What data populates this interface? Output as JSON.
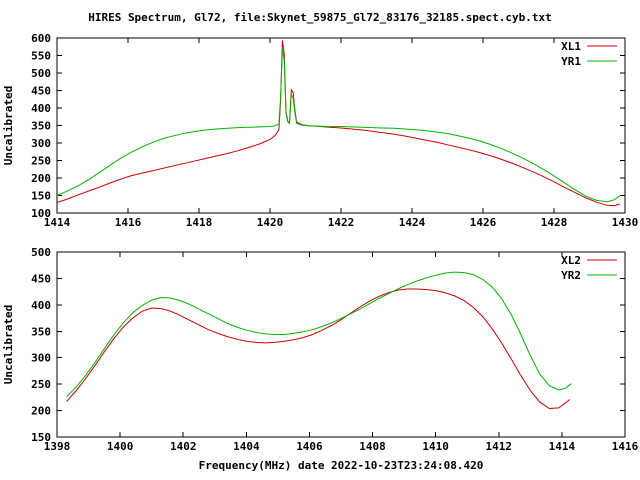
{
  "title": "HIRES Spectrum, Gl72, file:Skynet_59875_Gl72_83176_32185.spect.cyb.txt",
  "xlabel": "Frequency(MHz) date 2022-10-23T23:24:08.420",
  "colors": {
    "red": "#cc0000",
    "green": "#00b400",
    "axis": "#000000",
    "background": "#ffffff"
  },
  "chart_data": [
    {
      "type": "line",
      "panel": "top",
      "ylabel": "Uncalibrated",
      "xlim": [
        1414,
        1430
      ],
      "ylim": [
        100,
        600
      ],
      "xticks": [
        1414,
        1416,
        1418,
        1420,
        1422,
        1424,
        1426,
        1428,
        1430
      ],
      "yticks": [
        100,
        150,
        200,
        250,
        300,
        350,
        400,
        450,
        500,
        550,
        600
      ],
      "grid": false,
      "legend_position": "top-right",
      "series": [
        {
          "name": "XL1",
          "color_key": "red",
          "points": [
            [
              1414.0,
              130
            ],
            [
              1414.3,
              140
            ],
            [
              1414.6,
              152
            ],
            [
              1414.9,
              163
            ],
            [
              1415.2,
              174
            ],
            [
              1415.5,
              186
            ],
            [
              1415.8,
              197
            ],
            [
              1416.1,
              207
            ],
            [
              1416.4,
              214
            ],
            [
              1416.7,
              221
            ],
            [
              1417.0,
              228
            ],
            [
              1417.3,
              235
            ],
            [
              1417.6,
              242
            ],
            [
              1417.9,
              249
            ],
            [
              1418.2,
              256
            ],
            [
              1418.5,
              263
            ],
            [
              1418.8,
              270
            ],
            [
              1419.1,
              278
            ],
            [
              1419.4,
              287
            ],
            [
              1419.7,
              297
            ],
            [
              1420.0,
              310
            ],
            [
              1420.15,
              322
            ],
            [
              1420.25,
              338
            ],
            [
              1420.3,
              420
            ],
            [
              1420.35,
              593
            ],
            [
              1420.4,
              555
            ],
            [
              1420.45,
              390
            ],
            [
              1420.5,
              362
            ],
            [
              1420.55,
              358
            ],
            [
              1420.6,
              452
            ],
            [
              1420.65,
              445
            ],
            [
              1420.7,
              395
            ],
            [
              1420.75,
              360
            ],
            [
              1420.9,
              352
            ],
            [
              1421.1,
              349
            ],
            [
              1421.4,
              347
            ],
            [
              1421.7,
              345
            ],
            [
              1422.0,
              343
            ],
            [
              1422.3,
              340
            ],
            [
              1422.6,
              337
            ],
            [
              1422.9,
              333
            ],
            [
              1423.2,
              329
            ],
            [
              1423.5,
              325
            ],
            [
              1423.8,
              320
            ],
            [
              1424.1,
              314
            ],
            [
              1424.4,
              308
            ],
            [
              1424.7,
              302
            ],
            [
              1425.0,
              295
            ],
            [
              1425.3,
              288
            ],
            [
              1425.6,
              281
            ],
            [
              1425.9,
              273
            ],
            [
              1426.2,
              264
            ],
            [
              1426.5,
              254
            ],
            [
              1426.8,
              243
            ],
            [
              1427.1,
              231
            ],
            [
              1427.4,
              218
            ],
            [
              1427.7,
              204
            ],
            [
              1428.0,
              189
            ],
            [
              1428.3,
              173
            ],
            [
              1428.6,
              158
            ],
            [
              1428.9,
              143
            ],
            [
              1429.2,
              131
            ],
            [
              1429.5,
              122
            ],
            [
              1429.7,
              121
            ],
            [
              1429.85,
              126
            ]
          ]
        },
        {
          "name": "YR1",
          "color_key": "green",
          "points": [
            [
              1414.0,
              150
            ],
            [
              1414.3,
              163
            ],
            [
              1414.6,
              178
            ],
            [
              1414.9,
              196
            ],
            [
              1415.2,
              216
            ],
            [
              1415.5,
              237
            ],
            [
              1415.8,
              257
            ],
            [
              1416.1,
              274
            ],
            [
              1416.4,
              289
            ],
            [
              1416.7,
              302
            ],
            [
              1417.0,
              313
            ],
            [
              1417.3,
              321
            ],
            [
              1417.6,
              328
            ],
            [
              1417.9,
              333
            ],
            [
              1418.2,
              337
            ],
            [
              1418.5,
              340
            ],
            [
              1418.8,
              342
            ],
            [
              1419.1,
              344
            ],
            [
              1419.4,
              345
            ],
            [
              1419.7,
              346
            ],
            [
              1420.0,
              347
            ],
            [
              1420.15,
              349
            ],
            [
              1420.25,
              355
            ],
            [
              1420.3,
              430
            ],
            [
              1420.35,
              570
            ],
            [
              1420.4,
              535
            ],
            [
              1420.45,
              385
            ],
            [
              1420.5,
              360
            ],
            [
              1420.55,
              356
            ],
            [
              1420.6,
              438
            ],
            [
              1420.65,
              430
            ],
            [
              1420.7,
              388
            ],
            [
              1420.75,
              356
            ],
            [
              1420.9,
              351
            ],
            [
              1421.1,
              349
            ],
            [
              1421.4,
              348
            ],
            [
              1421.7,
              347
            ],
            [
              1422.0,
              347
            ],
            [
              1422.3,
              346
            ],
            [
              1422.6,
              345
            ],
            [
              1422.9,
              344
            ],
            [
              1423.2,
              343
            ],
            [
              1423.5,
              342
            ],
            [
              1423.8,
              340
            ],
            [
              1424.1,
              338
            ],
            [
              1424.4,
              335
            ],
            [
              1424.7,
              331
            ],
            [
              1425.0,
              327
            ],
            [
              1425.3,
              321
            ],
            [
              1425.6,
              314
            ],
            [
              1425.9,
              306
            ],
            [
              1426.2,
              296
            ],
            [
              1426.5,
              285
            ],
            [
              1426.8,
              272
            ],
            [
              1427.1,
              258
            ],
            [
              1427.4,
              242
            ],
            [
              1427.7,
              225
            ],
            [
              1428.0,
              206
            ],
            [
              1428.3,
              186
            ],
            [
              1428.6,
              166
            ],
            [
              1428.9,
              148
            ],
            [
              1429.2,
              136
            ],
            [
              1429.5,
              132
            ],
            [
              1429.7,
              138
            ],
            [
              1429.85,
              149
            ]
          ]
        }
      ]
    },
    {
      "type": "line",
      "panel": "bottom",
      "ylabel": "Uncalibrated",
      "xlim": [
        1398,
        1416
      ],
      "ylim": [
        150,
        500
      ],
      "xticks": [
        1398,
        1400,
        1402,
        1404,
        1406,
        1408,
        1410,
        1412,
        1414,
        1416
      ],
      "yticks": [
        150,
        200,
        250,
        300,
        350,
        400,
        450,
        500
      ],
      "grid": false,
      "legend_position": "top-right",
      "series": [
        {
          "name": "XL2",
          "color_key": "red",
          "points": [
            [
              1398.3,
              217
            ],
            [
              1398.6,
              237
            ],
            [
              1398.9,
              260
            ],
            [
              1399.2,
              285
            ],
            [
              1399.5,
              311
            ],
            [
              1399.8,
              336
            ],
            [
              1400.1,
              358
            ],
            [
              1400.4,
              375
            ],
            [
              1400.7,
              388
            ],
            [
              1401.0,
              394
            ],
            [
              1401.3,
              393
            ],
            [
              1401.6,
              388
            ],
            [
              1401.9,
              380
            ],
            [
              1402.2,
              371
            ],
            [
              1402.5,
              362
            ],
            [
              1402.8,
              353
            ],
            [
              1403.1,
              346
            ],
            [
              1403.4,
              340
            ],
            [
              1403.7,
              335
            ],
            [
              1404.0,
              331
            ],
            [
              1404.3,
              329
            ],
            [
              1404.6,
              328
            ],
            [
              1404.9,
              329
            ],
            [
              1405.2,
              331
            ],
            [
              1405.5,
              334
            ],
            [
              1405.8,
              338
            ],
            [
              1406.1,
              344
            ],
            [
              1406.4,
              352
            ],
            [
              1406.7,
              361
            ],
            [
              1407.0,
              372
            ],
            [
              1407.3,
              384
            ],
            [
              1407.6,
              396
            ],
            [
              1407.9,
              407
            ],
            [
              1408.2,
              416
            ],
            [
              1408.5,
              423
            ],
            [
              1408.8,
              428
            ],
            [
              1409.1,
              430
            ],
            [
              1409.4,
              430
            ],
            [
              1409.7,
              429
            ],
            [
              1410.0,
              427
            ],
            [
              1410.3,
              423
            ],
            [
              1410.6,
              417
            ],
            [
              1410.9,
              408
            ],
            [
              1411.2,
              395
            ],
            [
              1411.5,
              377
            ],
            [
              1411.8,
              354
            ],
            [
              1412.1,
              327
            ],
            [
              1412.4,
              297
            ],
            [
              1412.7,
              266
            ],
            [
              1413.0,
              238
            ],
            [
              1413.3,
              216
            ],
            [
              1413.6,
              204
            ],
            [
              1413.9,
              205
            ],
            [
              1414.1,
              214
            ],
            [
              1414.25,
              221
            ]
          ]
        },
        {
          "name": "YR2",
          "color_key": "green",
          "points": [
            [
              1398.3,
              226
            ],
            [
              1398.6,
              244
            ],
            [
              1398.9,
              266
            ],
            [
              1399.2,
              291
            ],
            [
              1399.5,
              317
            ],
            [
              1399.8,
              343
            ],
            [
              1400.1,
              366
            ],
            [
              1400.4,
              385
            ],
            [
              1400.7,
              399
            ],
            [
              1401.0,
              409
            ],
            [
              1401.3,
              414
            ],
            [
              1401.6,
              413
            ],
            [
              1401.9,
              408
            ],
            [
              1402.2,
              401
            ],
            [
              1402.5,
              392
            ],
            [
              1402.8,
              383
            ],
            [
              1403.1,
              374
            ],
            [
              1403.4,
              365
            ],
            [
              1403.7,
              358
            ],
            [
              1404.0,
              352
            ],
            [
              1404.3,
              348
            ],
            [
              1404.6,
              345
            ],
            [
              1404.9,
              344
            ],
            [
              1405.2,
              344
            ],
            [
              1405.5,
              346
            ],
            [
              1405.8,
              349
            ],
            [
              1406.1,
              353
            ],
            [
              1406.4,
              359
            ],
            [
              1406.7,
              366
            ],
            [
              1407.0,
              374
            ],
            [
              1407.3,
              383
            ],
            [
              1407.6,
              392
            ],
            [
              1407.9,
              402
            ],
            [
              1408.2,
              412
            ],
            [
              1408.5,
              421
            ],
            [
              1408.8,
              430
            ],
            [
              1409.1,
              438
            ],
            [
              1409.4,
              445
            ],
            [
              1409.7,
              451
            ],
            [
              1410.0,
              456
            ],
            [
              1410.3,
              460
            ],
            [
              1410.6,
              462
            ],
            [
              1410.9,
              461
            ],
            [
              1411.2,
              457
            ],
            [
              1411.5,
              448
            ],
            [
              1411.8,
              433
            ],
            [
              1412.1,
              411
            ],
            [
              1412.4,
              381
            ],
            [
              1412.7,
              344
            ],
            [
              1413.0,
              304
            ],
            [
              1413.3,
              269
            ],
            [
              1413.6,
              247
            ],
            [
              1413.9,
              239
            ],
            [
              1414.1,
              242
            ],
            [
              1414.3,
              251
            ]
          ]
        }
      ]
    }
  ]
}
